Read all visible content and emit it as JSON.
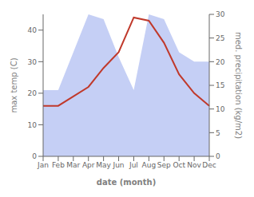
{
  "chart_data": {
    "type": "line",
    "xlabel": "date (month)",
    "ylabel": "max temp (C)",
    "y2label": "med. precipitation (kg/m2)",
    "categories": [
      "Jan",
      "Feb",
      "Mar",
      "Apr",
      "May",
      "Jun",
      "Jul",
      "Aug",
      "Sep",
      "Oct",
      "Nov",
      "Dec"
    ],
    "series": [
      {
        "type": "area",
        "axis": "y2",
        "color": "#c5cff5",
        "values": [
          14.0,
          14.0,
          22.0,
          30.0,
          29.0,
          21.0,
          14.0,
          30.0,
          29.0,
          22.0,
          20.0,
          20.0
        ]
      },
      {
        "type": "line",
        "color": "#c0392b",
        "values": [
          16.0,
          16.0,
          19.0,
          22.0,
          28.0,
          33.0,
          44.0,
          43.0,
          36.0,
          26.0,
          20.0,
          16.0
        ]
      }
    ],
    "ylim": [
      0,
      45
    ],
    "yticks": [
      0,
      10,
      20,
      30,
      40
    ],
    "y2lim": [
      0,
      30
    ],
    "y2ticks": [
      0,
      5,
      10,
      15,
      20,
      25,
      30
    ],
    "grid": false
  }
}
